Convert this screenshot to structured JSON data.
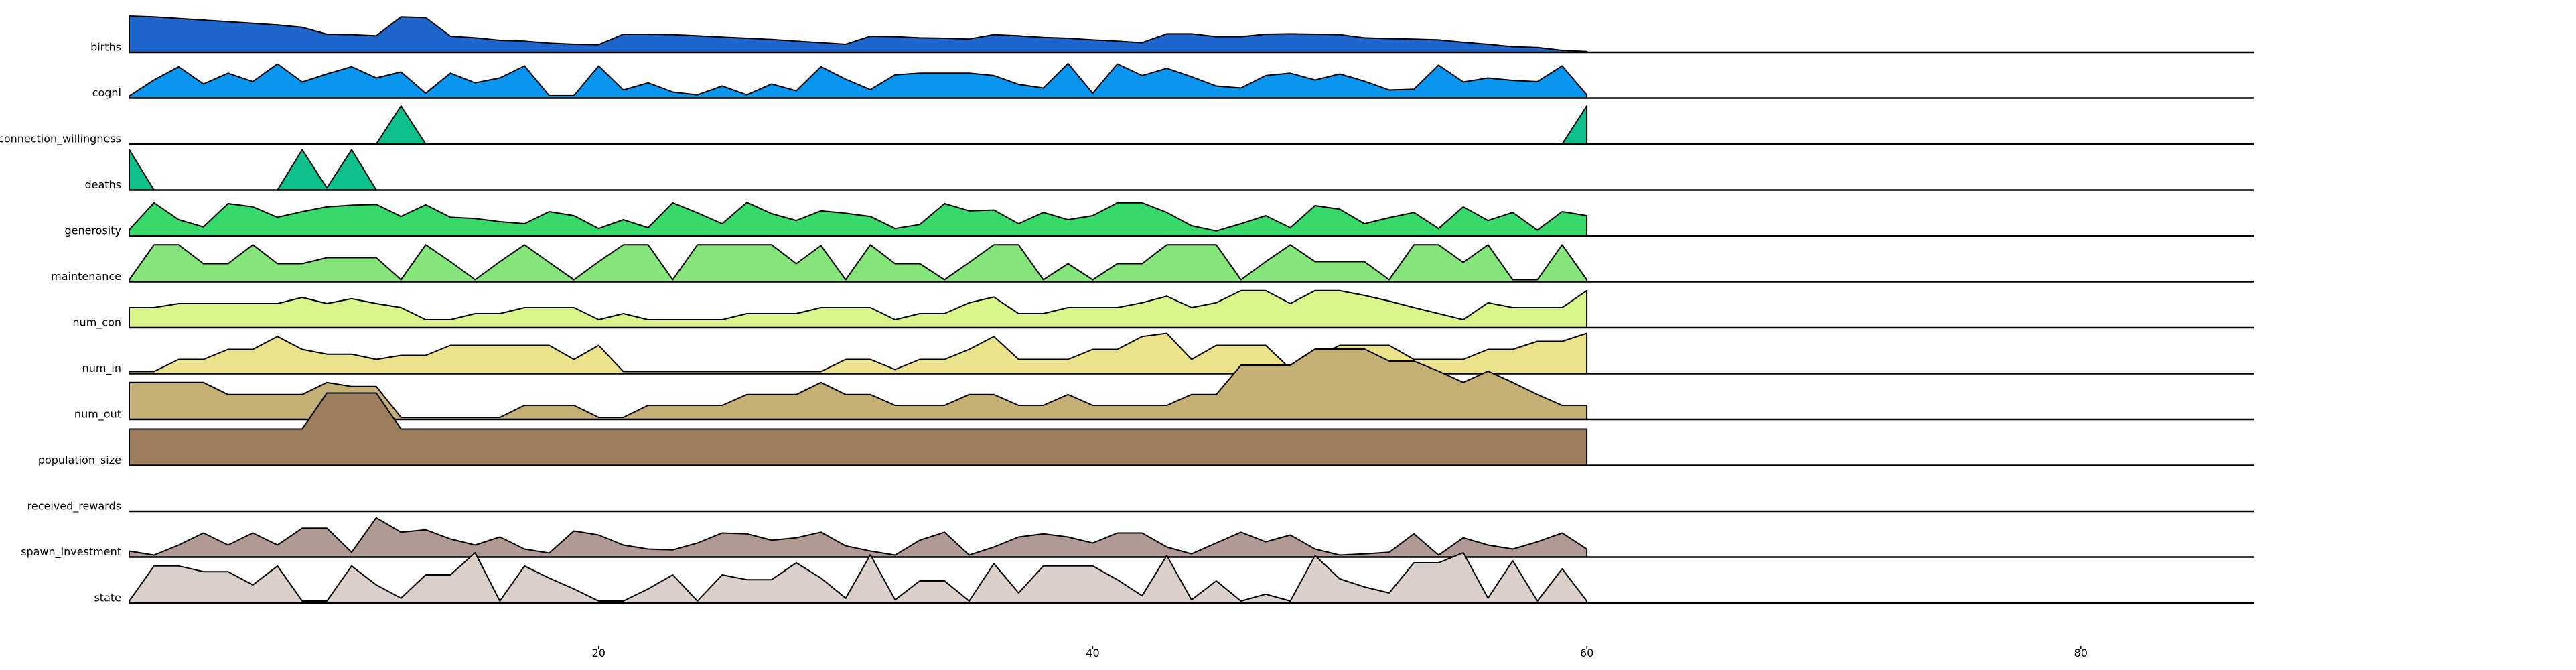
{
  "chart_data": {
    "type": "area",
    "layout": "ridgeline",
    "x": [
      1,
      2,
      3,
      4,
      5,
      6,
      7,
      8,
      9,
      10,
      11,
      12,
      13,
      14,
      15,
      16,
      17,
      18,
      19,
      20,
      21,
      22,
      23,
      24,
      25,
      26,
      27,
      28,
      29,
      30,
      31,
      32,
      33,
      34,
      35,
      36,
      37,
      38,
      39,
      40,
      41,
      42,
      43,
      44,
      45,
      46,
      47,
      48,
      49,
      50,
      51,
      52,
      53,
      54,
      55,
      56,
      57,
      58,
      59,
      60
    ],
    "xlim": [
      1,
      87
    ],
    "xticks": [
      20,
      40,
      60,
      80
    ],
    "series": [
      {
        "name": "births",
        "color": "#1f66cc",
        "values": [
          0.9,
          0.88,
          0.84,
          0.8,
          0.76,
          0.72,
          0.68,
          0.62,
          0.45,
          0.44,
          0.41,
          0.88,
          0.86,
          0.4,
          0.36,
          0.3,
          0.28,
          0.23,
          0.2,
          0.19,
          0.45,
          0.45,
          0.44,
          0.41,
          0.38,
          0.35,
          0.32,
          0.28,
          0.24,
          0.2,
          0.4,
          0.39,
          0.36,
          0.35,
          0.33,
          0.44,
          0.41,
          0.37,
          0.35,
          0.31,
          0.28,
          0.24,
          0.46,
          0.46,
          0.39,
          0.39,
          0.45,
          0.46,
          0.45,
          0.44,
          0.36,
          0.34,
          0.33,
          0.31,
          0.25,
          0.2,
          0.14,
          0.12,
          0.05,
          0.02
        ]
      },
      {
        "name": "cogni",
        "color": "#0a96ef",
        "values": [
          0.05,
          0.45,
          0.78,
          0.35,
          0.62,
          0.41,
          0.85,
          0.4,
          0.6,
          0.78,
          0.5,
          0.65,
          0.12,
          0.62,
          0.38,
          0.5,
          0.8,
          0.06,
          0.06,
          0.8,
          0.2,
          0.38,
          0.15,
          0.08,
          0.3,
          0.08,
          0.35,
          0.18,
          0.78,
          0.47,
          0.21,
          0.58,
          0.62,
          0.62,
          0.62,
          0.56,
          0.34,
          0.25,
          0.86,
          0.12,
          0.85,
          0.56,
          0.74,
          0.53,
          0.3,
          0.25,
          0.56,
          0.62,
          0.45,
          0.6,
          0.42,
          0.2,
          0.22,
          0.82,
          0.4,
          0.5,
          0.44,
          0.41,
          0.8,
          0.08
        ]
      },
      {
        "name": "connection_willingness",
        "color": "#0fbf8c",
        "values": [
          0.0,
          0.0,
          0.0,
          0.0,
          0.0,
          0.0,
          0.0,
          0.0,
          0.0,
          0.0,
          0.0,
          0.95,
          0.0,
          0.0,
          0.0,
          0.0,
          0.0,
          0.0,
          0.0,
          0.0,
          0.0,
          0.0,
          0.0,
          0.0,
          0.0,
          0.0,
          0.0,
          0.0,
          0.0,
          0.0,
          0.0,
          0.0,
          0.0,
          0.0,
          0.0,
          0.0,
          0.0,
          0.0,
          0.0,
          0.0,
          0.0,
          0.0,
          0.0,
          0.0,
          0.0,
          0.0,
          0.0,
          0.0,
          0.0,
          0.0,
          0.0,
          0.0,
          0.0,
          0.0,
          0.0,
          0.0,
          0.0,
          0.0,
          0.0,
          0.95
        ]
      },
      {
        "name": "deaths",
        "color": "#0fbf8c",
        "values": [
          1.0,
          0.0,
          0.0,
          0.0,
          0.0,
          0.0,
          0.0,
          1.0,
          0.05,
          1.0,
          0.0,
          0.0,
          0.0,
          0.0,
          0.0,
          0.0,
          0.0,
          0.0,
          0.0,
          0.0,
          0.0,
          0.0,
          0.0,
          0.0,
          0.0,
          0.0,
          0.0,
          0.0,
          0.0,
          0.0,
          0.0,
          0.0,
          0.0,
          0.0,
          0.0,
          0.0,
          0.0,
          0.0,
          0.0,
          0.0,
          0.0,
          0.0,
          0.0,
          0.0,
          0.0,
          0.0,
          0.0,
          0.0,
          0.0,
          0.0,
          0.0,
          0.0,
          0.0,
          0.0,
          0.0,
          0.0,
          0.0,
          0.0,
          0.0,
          0.0
        ]
      },
      {
        "name": "generosity",
        "color": "#37d96b",
        "values": [
          0.15,
          0.82,
          0.4,
          0.22,
          0.8,
          0.72,
          0.46,
          0.6,
          0.72,
          0.76,
          0.78,
          0.48,
          0.77,
          0.46,
          0.43,
          0.35,
          0.3,
          0.6,
          0.5,
          0.18,
          0.4,
          0.2,
          0.82,
          0.57,
          0.3,
          0.83,
          0.55,
          0.38,
          0.62,
          0.56,
          0.48,
          0.18,
          0.28,
          0.8,
          0.62,
          0.64,
          0.3,
          0.58,
          0.4,
          0.5,
          0.82,
          0.82,
          0.58,
          0.25,
          0.12,
          0.3,
          0.5,
          0.2,
          0.75,
          0.66,
          0.3,
          0.45,
          0.58,
          0.18,
          0.72,
          0.38,
          0.58,
          0.14,
          0.6,
          0.5
        ]
      },
      {
        "name": "maintenance",
        "color": "#86e57a",
        "values": [
          0.05,
          0.92,
          0.92,
          0.45,
          0.45,
          0.92,
          0.45,
          0.45,
          0.6,
          0.6,
          0.6,
          0.05,
          0.92,
          0.5,
          0.05,
          0.5,
          0.92,
          0.48,
          0.05,
          0.5,
          0.92,
          0.92,
          0.05,
          0.92,
          0.92,
          0.92,
          0.92,
          0.45,
          0.9,
          0.05,
          0.92,
          0.45,
          0.45,
          0.05,
          0.48,
          0.92,
          0.92,
          0.05,
          0.45,
          0.05,
          0.45,
          0.45,
          0.92,
          0.92,
          0.92,
          0.05,
          0.5,
          0.92,
          0.5,
          0.5,
          0.5,
          0.05,
          0.92,
          0.92,
          0.48,
          0.92,
          0.05,
          0.05,
          0.92,
          0.05
        ]
      },
      {
        "name": "num_con",
        "color": "#d9f58c",
        "values": [
          0.5,
          0.5,
          0.6,
          0.6,
          0.6,
          0.6,
          0.6,
          0.75,
          0.6,
          0.72,
          0.6,
          0.5,
          0.2,
          0.2,
          0.35,
          0.35,
          0.5,
          0.5,
          0.5,
          0.2,
          0.35,
          0.2,
          0.2,
          0.2,
          0.2,
          0.35,
          0.35,
          0.35,
          0.5,
          0.5,
          0.5,
          0.2,
          0.35,
          0.35,
          0.62,
          0.76,
          0.35,
          0.35,
          0.5,
          0.5,
          0.5,
          0.62,
          0.78,
          0.5,
          0.62,
          0.92,
          0.92,
          0.6,
          0.92,
          0.92,
          0.8,
          0.66,
          0.5,
          0.35,
          0.2,
          0.62,
          0.5,
          0.5,
          0.5,
          0.92
        ]
      },
      {
        "name": "num_in",
        "color": "#ebe38c",
        "values": [
          0.05,
          0.05,
          0.35,
          0.35,
          0.6,
          0.6,
          0.92,
          0.6,
          0.48,
          0.48,
          0.35,
          0.45,
          0.45,
          0.7,
          0.7,
          0.7,
          0.7,
          0.7,
          0.35,
          0.7,
          0.05,
          0.05,
          0.05,
          0.05,
          0.05,
          0.05,
          0.05,
          0.05,
          0.05,
          0.35,
          0.35,
          0.1,
          0.35,
          0.35,
          0.6,
          0.92,
          0.35,
          0.35,
          0.35,
          0.6,
          0.6,
          0.92,
          1.0,
          0.35,
          0.7,
          0.7,
          0.7,
          0.12,
          0.4,
          0.7,
          0.7,
          0.7,
          0.35,
          0.35,
          0.35,
          0.6,
          0.6,
          0.8,
          0.8,
          1.0
        ]
      },
      {
        "name": "num_out",
        "color": "#c4b075",
        "values": [
          0.92,
          0.92,
          0.92,
          0.92,
          0.62,
          0.62,
          0.62,
          0.62,
          0.92,
          0.82,
          0.82,
          0.05,
          0.05,
          0.05,
          0.05,
          0.05,
          0.35,
          0.35,
          0.35,
          0.05,
          0.05,
          0.35,
          0.35,
          0.35,
          0.35,
          0.62,
          0.62,
          0.62,
          0.92,
          0.62,
          0.62,
          0.35,
          0.35,
          0.35,
          0.62,
          0.62,
          0.35,
          0.35,
          0.62,
          0.35,
          0.35,
          0.35,
          0.35,
          0.62,
          0.62,
          1.35,
          1.35,
          1.35,
          1.75,
          1.75,
          1.75,
          1.45,
          1.45,
          1.2,
          0.92,
          1.2,
          0.92,
          0.62,
          0.35,
          0.35
        ]
      },
      {
        "name": "population_size",
        "color": "#9c7e5c",
        "values": [
          0.9,
          0.9,
          0.9,
          0.9,
          0.9,
          0.9,
          0.9,
          0.9,
          1.8,
          1.8,
          1.8,
          0.9,
          0.9,
          0.9,
          0.9,
          0.9,
          0.9,
          0.9,
          0.9,
          0.9,
          0.9,
          0.9,
          0.9,
          0.9,
          0.9,
          0.9,
          0.9,
          0.9,
          0.9,
          0.9,
          0.9,
          0.9,
          0.9,
          0.9,
          0.9,
          0.9,
          0.9,
          0.9,
          0.9,
          0.9,
          0.9,
          0.9,
          0.9,
          0.9,
          0.9,
          0.9,
          0.9,
          0.9,
          0.9,
          0.9,
          0.9,
          0.9,
          0.9,
          0.9,
          0.9,
          0.9,
          0.9,
          0.9,
          0.9,
          0.9
        ]
      },
      {
        "name": "received_rewards",
        "color": "#b19a94",
        "values": [
          0,
          0,
          0,
          0,
          0,
          0,
          0,
          0,
          0,
          0,
          0,
          0,
          0,
          0,
          0,
          0,
          0,
          0,
          0,
          0,
          0,
          0,
          0,
          0,
          0,
          0,
          0,
          0,
          0,
          0,
          0,
          0,
          0,
          0,
          0,
          0,
          0,
          0,
          0,
          0,
          0,
          0,
          0,
          0,
          0,
          0,
          0,
          0,
          0,
          0,
          0,
          0,
          0,
          0,
          0,
          0,
          0,
          0,
          0,
          0
        ]
      },
      {
        "name": "spawn_investment",
        "color": "#b19a94",
        "values": [
          0.15,
          0.05,
          0.3,
          0.6,
          0.3,
          0.6,
          0.3,
          0.72,
          0.72,
          0.12,
          0.98,
          0.62,
          0.68,
          0.45,
          0.3,
          0.5,
          0.2,
          0.1,
          0.65,
          0.55,
          0.3,
          0.2,
          0.18,
          0.35,
          0.6,
          0.58,
          0.42,
          0.48,
          0.62,
          0.28,
          0.15,
          0.05,
          0.42,
          0.62,
          0.05,
          0.25,
          0.5,
          0.58,
          0.5,
          0.35,
          0.6,
          0.6,
          0.25,
          0.08,
          0.35,
          0.62,
          0.38,
          0.55,
          0.2,
          0.05,
          0.08,
          0.12,
          0.58,
          0.05,
          0.48,
          0.3,
          0.2,
          0.38,
          0.6,
          0.2
        ]
      },
      {
        "name": "state",
        "color": "#dcd0cc",
        "values": [
          0.05,
          0.92,
          0.92,
          0.78,
          0.78,
          0.45,
          0.92,
          0.05,
          0.05,
          0.92,
          0.45,
          0.12,
          0.7,
          0.7,
          1.25,
          0.05,
          0.92,
          0.62,
          0.35,
          0.05,
          0.05,
          0.35,
          0.7,
          0.05,
          0.7,
          0.58,
          0.58,
          1.0,
          0.62,
          0.12,
          1.2,
          0.08,
          0.55,
          0.55,
          0.05,
          0.98,
          0.25,
          0.92,
          0.92,
          0.92,
          0.58,
          0.18,
          1.18,
          0.08,
          0.55,
          0.05,
          0.22,
          0.05,
          1.18,
          0.6,
          0.4,
          0.25,
          1.0,
          1.0,
          1.25,
          0.12,
          1.05,
          0.05,
          0.85,
          0.05
        ]
      }
    ]
  }
}
